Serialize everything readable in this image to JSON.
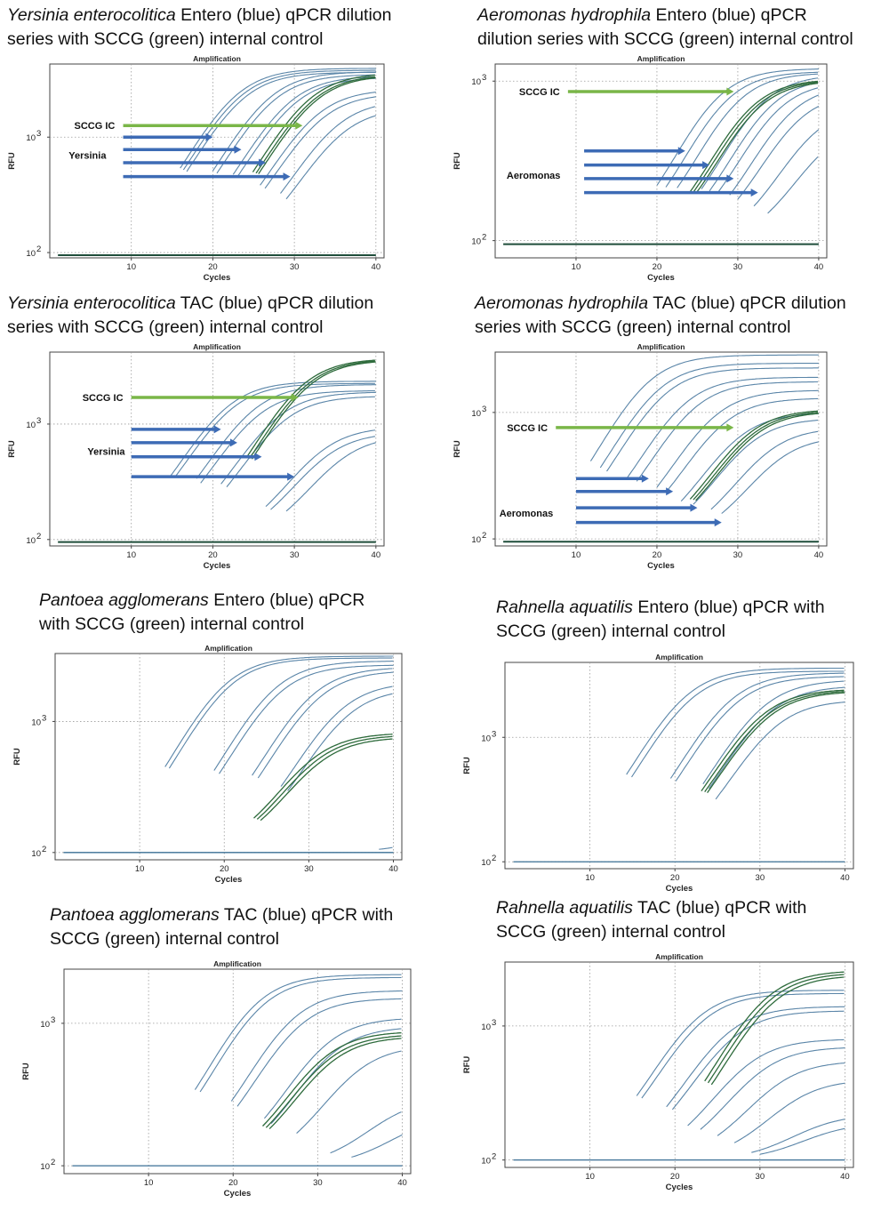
{
  "panels": [
    {
      "title_italic": "Yersinia enterocolitica",
      "title_rest1": " Entero (blue) qPCR dilution",
      "title_line2": "series with SCCG (green) internal control",
      "chart_title": "Amplification",
      "xlabel": "Cycles",
      "ylabel": "RFU",
      "labels": {
        "ic": "SCCG IC",
        "target": "Yersinia"
      }
    },
    {
      "title_italic": "Aeromonas hydrophila",
      "title_rest1": " Entero (blue) qPCR",
      "title_line2": "dilution series with SCCG (green) internal control",
      "chart_title": "Amplification",
      "xlabel": "Cycles",
      "ylabel": "RFU",
      "labels": {
        "ic": "SCCG IC",
        "target": "Aeromonas"
      }
    },
    {
      "title_italic": "Yersinia enterocolitica",
      "title_rest1": " TAC (blue) qPCR dilution",
      "title_line2": "series with SCCG (green) internal control",
      "chart_title": "Amplification",
      "xlabel": "Cycles",
      "ylabel": "RFU",
      "labels": {
        "ic": "SCCG IC",
        "target": "Yersinia"
      }
    },
    {
      "title_italic": "Aeromonas hydrophila",
      "title_rest1": " TAC (blue) qPCR dilution",
      "title_line2": "series with SCCG (green) internal control",
      "chart_title": "Amplification",
      "xlabel": "Cycles",
      "ylabel": "RFU",
      "labels": {
        "ic": "SCCG IC",
        "target": "Aeromonas"
      }
    },
    {
      "title_italic": "Pantoea agglomerans",
      "title_rest1": " Entero (blue) qPCR",
      "title_line2": "with SCCG (green) internal control",
      "chart_title": "Amplification",
      "xlabel": "Cycles",
      "ylabel": "RFU"
    },
    {
      "title_italic": "Rahnella aquatilis",
      "title_rest1": " Entero (blue) qPCR with",
      "title_line2": "SCCG (green) internal control",
      "chart_title": "Amplification",
      "xlabel": "Cycles",
      "ylabel": "RFU"
    },
    {
      "title_italic": "Pantoea agglomerans",
      "title_rest1": " TAC (blue) qPCR with",
      "title_line2": "SCCG (green) internal control",
      "chart_title": "Amplification",
      "xlabel": "Cycles",
      "ylabel": "RFU"
    },
    {
      "title_italic": "Rahnella aquatilis",
      "title_rest1": " TAC (blue) qPCR with",
      "title_line2": "SCCG (green) internal control",
      "chart_title": "Amplification",
      "xlabel": "Cycles",
      "ylabel": "RFU"
    }
  ],
  "chart_data": [
    {
      "type": "line",
      "title": "Amplification",
      "xlabel": "Cycles",
      "ylabel": "RFU",
      "xlim": [
        0,
        41
      ],
      "xticks": [
        10,
        20,
        30,
        40
      ],
      "yscale": "log",
      "ylim": [
        90,
        4300
      ],
      "yticks": [
        100,
        1000
      ],
      "ytick_labels": [
        "10^2",
        "10^3"
      ],
      "grid": true,
      "baseline": 95,
      "colors": {
        "target": "#5a85a8",
        "ic": "#2e6b3c",
        "arrow_target": "#3d6bb5",
        "arrow_ic": "#7ab648"
      },
      "curves": [
        {
          "group": "target",
          "ct": 17.5,
          "max": 3950
        },
        {
          "group": "target",
          "ct": 17.9,
          "max": 3800
        },
        {
          "group": "target",
          "ct": 18.3,
          "max": 3650
        },
        {
          "group": "target",
          "ct": 21.5,
          "max": 3700
        },
        {
          "group": "target",
          "ct": 22.0,
          "max": 3500
        },
        {
          "group": "target",
          "ct": 24.0,
          "max": 3400
        },
        {
          "group": "target",
          "ct": 24.6,
          "max": 3300
        },
        {
          "group": "target",
          "ct": 27.3,
          "max": 2600
        },
        {
          "group": "target",
          "ct": 27.9,
          "max": 2400
        },
        {
          "group": "target",
          "ct": 29.8,
          "max": 2100
        },
        {
          "group": "target",
          "ct": 30.5,
          "max": 1800
        },
        {
          "group": "ic",
          "ct": 26.4,
          "max": 3600
        },
        {
          "group": "ic",
          "ct": 26.8,
          "max": 3500
        },
        {
          "group": "ic",
          "ct": 27.1,
          "max": 3450
        }
      ],
      "arrows": [
        {
          "label_key": "ic",
          "group": "ic",
          "from_x": 9,
          "to_x": 31.0,
          "y": 1260
        },
        {
          "group": "target",
          "from_x": 9,
          "to_x": 20.0,
          "y": 1000
        },
        {
          "group": "target",
          "from_x": 9,
          "to_x": 23.5,
          "y": 780
        },
        {
          "group": "target",
          "from_x": 9,
          "to_x": 26.5,
          "y": 600
        },
        {
          "group": "target",
          "from_x": 9,
          "to_x": 29.5,
          "y": 455
        }
      ],
      "target_label_at": {
        "x": 2.1,
        "y": 700
      }
    },
    {
      "type": "line",
      "title": "Amplification",
      "xlabel": "Cycles",
      "ylabel": "RFU",
      "xlim": [
        0,
        41
      ],
      "xticks": [
        10,
        20,
        30,
        40
      ],
      "yscale": "log",
      "ylim": [
        78,
        1280
      ],
      "yticks": [
        100,
        1000
      ],
      "ytick_labels": [
        "10^2",
        "10^3"
      ],
      "grid": true,
      "baseline": 95,
      "colors": {
        "target": "#5a85a8",
        "ic": "#2e6b3c",
        "arrow_target": "#3d6bb5",
        "arrow_ic": "#7ab648"
      },
      "curves": [
        {
          "group": "target",
          "ct": 21.5,
          "max": 1200
        },
        {
          "group": "target",
          "ct": 22.6,
          "max": 1150
        },
        {
          "group": "target",
          "ct": 24.0,
          "max": 1130
        },
        {
          "group": "target",
          "ct": 27.0,
          "max": 1100
        },
        {
          "group": "target",
          "ct": 28.0,
          "max": 1050
        },
        {
          "group": "target",
          "ct": 29.0,
          "max": 1000
        },
        {
          "group": "target",
          "ct": 30.5,
          "max": 950
        },
        {
          "group": "target",
          "ct": 31.5,
          "max": 850
        },
        {
          "group": "target",
          "ct": 33.5,
          "max": 700
        },
        {
          "group": "target",
          "ct": 35.2,
          "max": 560
        },
        {
          "group": "ic",
          "ct": 25.6,
          "max": 1030
        },
        {
          "group": "ic",
          "ct": 26.0,
          "max": 1020
        },
        {
          "group": "ic",
          "ct": 26.4,
          "max": 1010
        }
      ],
      "arrows": [
        {
          "label_key": "ic",
          "group": "ic",
          "from_x": 9,
          "to_x": 29.5,
          "y": 860
        },
        {
          "group": "target",
          "from_x": 11,
          "to_x": 23.5,
          "y": 365
        },
        {
          "group": "target",
          "from_x": 11,
          "to_x": 26.5,
          "y": 298
        },
        {
          "group": "target",
          "from_x": 11,
          "to_x": 29.5,
          "y": 245
        },
        {
          "group": "target",
          "from_x": 11,
          "to_x": 32.5,
          "y": 200
        }
      ],
      "target_label_at": {
        "x": 1.2,
        "y": 258
      }
    },
    {
      "type": "line",
      "title": "Amplification",
      "xlabel": "Cycles",
      "ylabel": "RFU",
      "xlim": [
        0,
        41
      ],
      "xticks": [
        10,
        20,
        30,
        40
      ],
      "yscale": "log",
      "ylim": [
        88,
        4200
      ],
      "yticks": [
        100,
        1000
      ],
      "ytick_labels": [
        "10^2",
        "10^3"
      ],
      "grid": true,
      "baseline": 95,
      "colors": {
        "target": "#5a85a8",
        "ic": "#2e6b3c",
        "arrow_target": "#3d6bb5",
        "arrow_ic": "#7ab648"
      },
      "curves": [
        {
          "group": "target",
          "ct": 16.3,
          "max": 2350
        },
        {
          "group": "target",
          "ct": 16.8,
          "max": 2250
        },
        {
          "group": "target",
          "ct": 19.5,
          "max": 2200
        },
        {
          "group": "target",
          "ct": 20.0,
          "max": 1950
        },
        {
          "group": "target",
          "ct": 22.5,
          "max": 1900
        },
        {
          "group": "target",
          "ct": 23.2,
          "max": 1750
        },
        {
          "group": "target",
          "ct": 28.0,
          "max": 950
        },
        {
          "group": "target",
          "ct": 28.6,
          "max": 850
        },
        {
          "group": "target",
          "ct": 30.5,
          "max": 800
        },
        {
          "group": "ic",
          "ct": 25.6,
          "max": 3700
        },
        {
          "group": "ic",
          "ct": 26.0,
          "max": 3650
        },
        {
          "group": "ic",
          "ct": 26.3,
          "max": 3600
        }
      ],
      "arrows": [
        {
          "label_key": "ic",
          "group": "ic",
          "from_x": 10,
          "to_x": 30.5,
          "y": 1700
        },
        {
          "group": "target",
          "from_x": 10,
          "to_x": 21.0,
          "y": 900
        },
        {
          "group": "target",
          "from_x": 10,
          "to_x": 23.0,
          "y": 690
        },
        {
          "group": "target",
          "from_x": 10,
          "to_x": 26.0,
          "y": 520
        },
        {
          "group": "target",
          "from_x": 10,
          "to_x": 30.0,
          "y": 350
        }
      ],
      "target_label_at": {
        "x": 4.4,
        "y": 580
      }
    },
    {
      "type": "line",
      "title": "Amplification",
      "xlabel": "Cycles",
      "ylabel": "RFU",
      "xlim": [
        0,
        41
      ],
      "xticks": [
        10,
        20,
        30,
        40
      ],
      "yscale": "log",
      "ylim": [
        88,
        3000
      ],
      "yticks": [
        100,
        1000
      ],
      "ytick_labels": [
        "10^2",
        "10^3"
      ],
      "grid": true,
      "baseline": 95,
      "colors": {
        "target": "#5a85a8",
        "ic": "#2e6b3c",
        "arrow_target": "#3d6bb5",
        "arrow_ic": "#7ab648"
      },
      "curves": [
        {
          "group": "target",
          "ct": 13.3,
          "max": 2850
        },
        {
          "group": "target",
          "ct": 14.5,
          "max": 2450
        },
        {
          "group": "target",
          "ct": 15.3,
          "max": 2250
        },
        {
          "group": "target",
          "ct": 17.8,
          "max": 1900
        },
        {
          "group": "target",
          "ct": 19.0,
          "max": 1750
        },
        {
          "group": "target",
          "ct": 21.5,
          "max": 1500
        },
        {
          "group": "target",
          "ct": 22.6,
          "max": 1300
        },
        {
          "group": "target",
          "ct": 24.5,
          "max": 1000
        },
        {
          "group": "target",
          "ct": 26.0,
          "max": 900
        },
        {
          "group": "target",
          "ct": 28.2,
          "max": 760
        },
        {
          "group": "target",
          "ct": 29.5,
          "max": 650
        },
        {
          "group": "ic",
          "ct": 25.6,
          "max": 1060
        },
        {
          "group": "ic",
          "ct": 26.0,
          "max": 1040
        },
        {
          "group": "ic",
          "ct": 26.3,
          "max": 1020
        }
      ],
      "arrows": [
        {
          "label_key": "ic",
          "group": "ic",
          "from_x": 7.5,
          "to_x": 29.5,
          "y": 760
        },
        {
          "group": "target",
          "from_x": 10,
          "to_x": 19.0,
          "y": 300
        },
        {
          "group": "target",
          "from_x": 10,
          "to_x": 22.0,
          "y": 237
        },
        {
          "group": "target",
          "from_x": 10,
          "to_x": 25.0,
          "y": 176
        },
        {
          "group": "target",
          "from_x": 10,
          "to_x": 28.0,
          "y": 135
        }
      ],
      "target_label_at": {
        "x": 0.3,
        "y": 160
      }
    },
    {
      "type": "line",
      "title": "Amplification",
      "xlabel": "Cycles",
      "ylabel": "RFU",
      "xlim": [
        0,
        41
      ],
      "xticks": [
        10,
        20,
        30,
        40
      ],
      "yscale": "log",
      "ylim": [
        88,
        3300
      ],
      "yticks": [
        100,
        1000
      ],
      "ytick_labels": [
        "10^2",
        "10^3"
      ],
      "grid": true,
      "baseline": 100,
      "colors": {
        "target": "#5a85a8",
        "ic": "#2e6b3c"
      },
      "curves": [
        {
          "group": "target",
          "ct": 14.5,
          "max": 3150
        },
        {
          "group": "target",
          "ct": 15.0,
          "max": 3050
        },
        {
          "group": "target",
          "ct": 20.3,
          "max": 2900
        },
        {
          "group": "target",
          "ct": 20.9,
          "max": 2700
        },
        {
          "group": "target",
          "ct": 24.8,
          "max": 2600
        },
        {
          "group": "target",
          "ct": 25.5,
          "max": 2450
        },
        {
          "group": "target",
          "ct": 28.2,
          "max": 2000
        },
        {
          "group": "target",
          "ct": 29.0,
          "max": 1800
        },
        {
          "group": "ic",
          "ct": 25.0,
          "max": 820
        },
        {
          "group": "ic",
          "ct": 25.4,
          "max": 790
        },
        {
          "group": "ic",
          "ct": 25.8,
          "max": 760
        },
        {
          "group": "target",
          "ct": 39.8,
          "max": 150
        }
      ]
    },
    {
      "type": "line",
      "title": "Amplification",
      "xlabel": "Cycles",
      "ylabel": "RFU",
      "xlim": [
        0,
        41
      ],
      "xticks": [
        10,
        20,
        30,
        40
      ],
      "yscale": "log",
      "ylim": [
        88,
        4000
      ],
      "yticks": [
        100,
        1000
      ],
      "ytick_labels": [
        "10^2",
        "10^3"
      ],
      "grid": true,
      "baseline": 100,
      "colors": {
        "target": "#5a85a8",
        "ic": "#2e6b3c"
      },
      "curves": [
        {
          "group": "target",
          "ct": 15.8,
          "max": 3600
        },
        {
          "group": "target",
          "ct": 16.4,
          "max": 3400
        },
        {
          "group": "target",
          "ct": 21.0,
          "max": 3300
        },
        {
          "group": "target",
          "ct": 21.6,
          "max": 3100
        },
        {
          "group": "target",
          "ct": 24.8,
          "max": 2900
        },
        {
          "group": "target",
          "ct": 25.5,
          "max": 2600
        },
        {
          "group": "target",
          "ct": 26.3,
          "max": 2000
        },
        {
          "group": "ic",
          "ct": 24.6,
          "max": 2450
        },
        {
          "group": "ic",
          "ct": 25.0,
          "max": 2400
        },
        {
          "group": "ic",
          "ct": 25.3,
          "max": 2350
        }
      ]
    },
    {
      "type": "line",
      "title": "Amplification",
      "xlabel": "Cycles",
      "ylabel": "RFU",
      "xlim": [
        0,
        41
      ],
      "xticks": [
        10,
        20,
        30,
        40
      ],
      "yscale": "log",
      "ylim": [
        88,
        2400
      ],
      "yticks": [
        100,
        1000
      ],
      "ytick_labels": [
        "10^2",
        "10^3"
      ],
      "grid": true,
      "baseline": 100,
      "colors": {
        "target": "#5a85a8",
        "ic": "#2e6b3c"
      },
      "curves": [
        {
          "group": "target",
          "ct": 17.0,
          "max": 2200
        },
        {
          "group": "target",
          "ct": 17.6,
          "max": 2100
        },
        {
          "group": "target",
          "ct": 21.3,
          "max": 1700
        },
        {
          "group": "target",
          "ct": 22.0,
          "max": 1500
        },
        {
          "group": "target",
          "ct": 25.2,
          "max": 1100
        },
        {
          "group": "target",
          "ct": 26.0,
          "max": 950
        },
        {
          "group": "target",
          "ct": 29.0,
          "max": 700
        },
        {
          "group": "target",
          "ct": 33.0,
          "max": 300
        },
        {
          "group": "target",
          "ct": 35.5,
          "max": 230
        },
        {
          "group": "ic",
          "ct": 25.0,
          "max": 880
        },
        {
          "group": "ic",
          "ct": 25.4,
          "max": 840
        },
        {
          "group": "ic",
          "ct": 25.8,
          "max": 810
        }
      ]
    },
    {
      "type": "line",
      "title": "Amplification",
      "xlabel": "Cycles",
      "ylabel": "RFU",
      "xlim": [
        0,
        41
      ],
      "xticks": [
        10,
        20,
        30,
        40
      ],
      "yscale": "log",
      "ylim": [
        88,
        3000
      ],
      "yticks": [
        100,
        1000
      ],
      "ytick_labels": [
        "10^2",
        "10^3"
      ],
      "grid": true,
      "baseline": 100,
      "colors": {
        "target": "#5a85a8",
        "ic": "#2e6b3c"
      },
      "curves": [
        {
          "group": "target",
          "ct": 17.0,
          "max": 1850
        },
        {
          "group": "target",
          "ct": 17.6,
          "max": 1750
        },
        {
          "group": "target",
          "ct": 20.5,
          "max": 1400
        },
        {
          "group": "target",
          "ct": 21.2,
          "max": 1300
        },
        {
          "group": "target",
          "ct": 23.0,
          "max": 800
        },
        {
          "group": "target",
          "ct": 24.5,
          "max": 700
        },
        {
          "group": "target",
          "ct": 26.5,
          "max": 550
        },
        {
          "group": "target",
          "ct": 28.5,
          "max": 400
        },
        {
          "group": "target",
          "ct": 30.5,
          "max": 220
        },
        {
          "group": "target",
          "ct": 31.5,
          "max": 190
        },
        {
          "group": "ic",
          "ct": 25.0,
          "max": 2600
        },
        {
          "group": "ic",
          "ct": 25.4,
          "max": 2500
        },
        {
          "group": "ic",
          "ct": 25.8,
          "max": 2400
        }
      ]
    }
  ]
}
